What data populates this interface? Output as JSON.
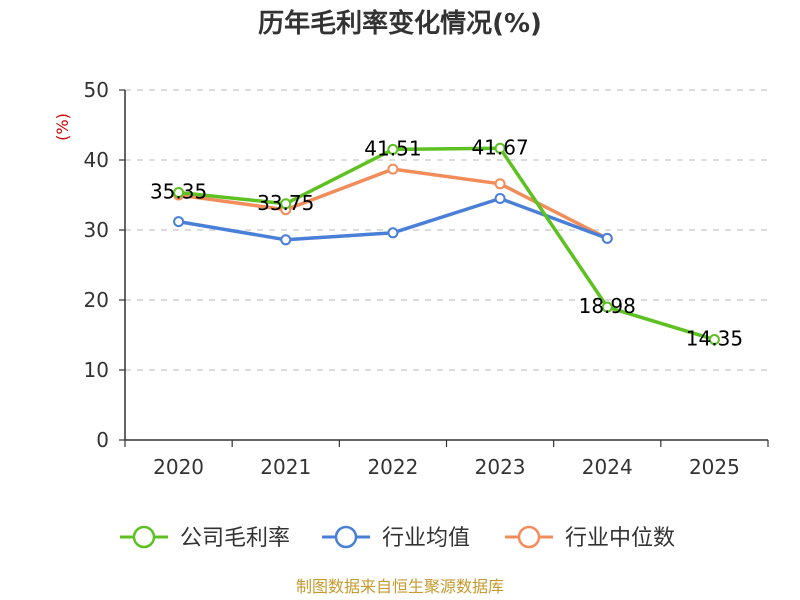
{
  "chart_data": {
    "type": "line",
    "title": "历年毛利率变化情况(%)",
    "y_unit_label": "(%)",
    "categories": [
      "2020",
      "2021",
      "2022",
      "2023",
      "2024",
      "2025"
    ],
    "ylim": [
      0,
      50
    ],
    "yticks": [
      0,
      10,
      20,
      30,
      40,
      50
    ],
    "grid": true,
    "legend_position": "bottom",
    "series": [
      {
        "name": "公司毛利率",
        "color": "#5dc122",
        "values": [
          35.35,
          33.75,
          41.51,
          41.67,
          18.98,
          14.35
        ],
        "labels": [
          "35.35",
          "33.75",
          "41.51",
          "41.67",
          "18.98",
          "14.35"
        ]
      },
      {
        "name": "行业均值",
        "color": "#4a7fd8",
        "values": [
          31.2,
          28.6,
          29.6,
          34.5,
          28.8,
          null
        ]
      },
      {
        "name": "行业中位数",
        "color": "#f28c5a",
        "values": [
          35.0,
          32.9,
          38.7,
          36.6,
          28.8,
          null
        ]
      }
    ]
  },
  "footer": "制图数据来自恒生聚源数据库"
}
